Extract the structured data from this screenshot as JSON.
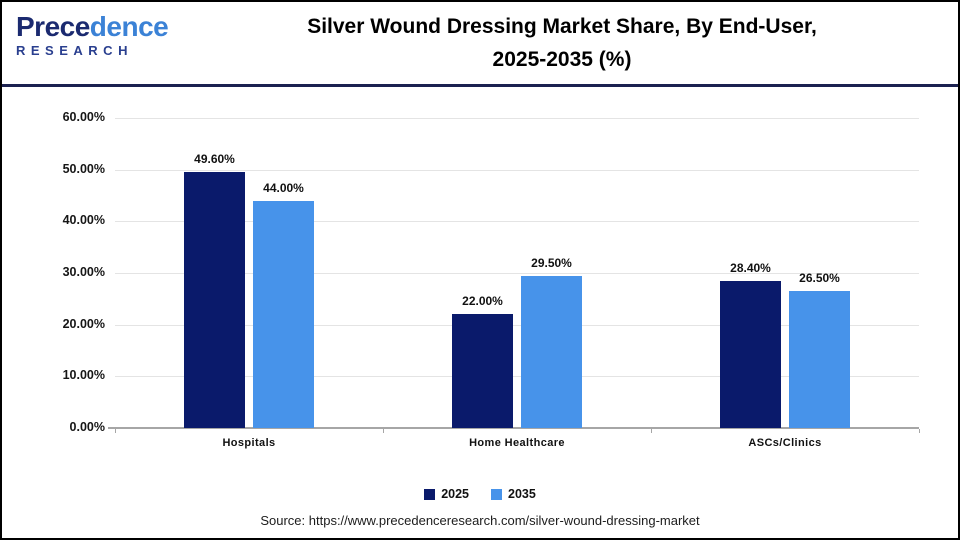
{
  "header": {
    "logo": {
      "brand_part1": "Prece",
      "brand_part2": "dence",
      "subbrand": "RESEARCH"
    },
    "title_line1": "Silver Wound Dressing Market Share, By End-User,",
    "title_line2": "2025-2035 (%)"
  },
  "chart_data": {
    "type": "bar",
    "title": "Silver Wound Dressing Market Share, By End-User, 2025-2035 (%)",
    "categories": [
      "Hospitals",
      "Home Healthcare",
      "ASCs/Clinics"
    ],
    "series": [
      {
        "name": "2025",
        "color": "#0a1a6b",
        "values": [
          49.6,
          22.0,
          28.4
        ]
      },
      {
        "name": "2035",
        "color": "#4793ea",
        "values": [
          44.0,
          29.5,
          26.5
        ]
      }
    ],
    "data_labels": [
      [
        "49.60%",
        "22.00%",
        "28.40%"
      ],
      [
        "44.00%",
        "29.50%",
        "26.50%"
      ]
    ],
    "ylim": [
      0,
      60
    ],
    "ytick_step": 10,
    "ytick_labels": [
      "0.00%",
      "10.00%",
      "20.00%",
      "30.00%",
      "40.00%",
      "50.00%",
      "60.00%"
    ],
    "grid": true,
    "legend_position": "bottom"
  },
  "footer": {
    "source": "Source: https://www.precedenceresearch.com/silver-wound-dressing-market"
  },
  "colors": {
    "series_2025": "#0a1a6b",
    "series_2035": "#4793ea",
    "header_rule": "#1b2150",
    "gridline": "#e4e4e4",
    "axis": "#a6a6a6"
  }
}
